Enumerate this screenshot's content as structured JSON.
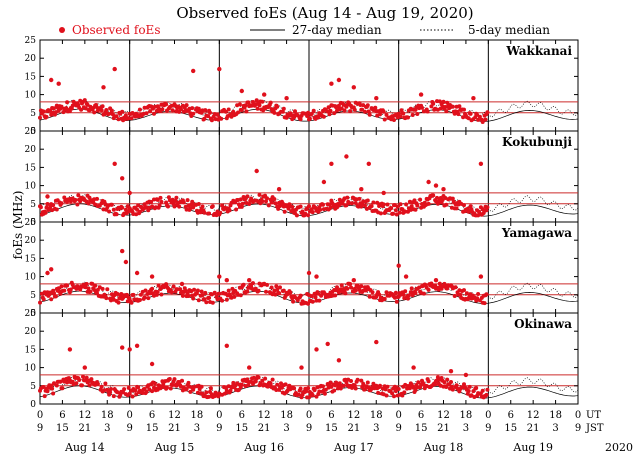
{
  "chart_data": {
    "type": "scatter",
    "title": "Observed foEs (Aug 14 - Aug 19, 2020)",
    "legend": {
      "observed": "Observed foEs",
      "median27": "27-day median",
      "median5": "5-day median"
    },
    "ylabel": "foEs (MHz)",
    "ylim": [
      0,
      25
    ],
    "yticks": [
      0,
      5,
      10,
      15,
      20,
      25
    ],
    "reference_lines_mhz": [
      5,
      8
    ],
    "colors": {
      "observed": "#e0101c",
      "reference": "#cc2a2a",
      "median": "#000000"
    },
    "x_hours": [
      0,
      144
    ],
    "day_boundaries_hours": [
      24,
      48,
      72,
      96,
      120
    ],
    "ut_ticks": [
      "0",
      "6",
      "12",
      "18",
      "0",
      "6",
      "12",
      "18",
      "0",
      "6",
      "12",
      "18",
      "0",
      "6",
      "12",
      "18",
      "0",
      "6",
      "12",
      "18",
      "0",
      "6",
      "12",
      "18",
      "0"
    ],
    "jst_ticks": [
      "9",
      "15",
      "21",
      "3",
      "9",
      "15",
      "21",
      "3",
      "9",
      "15",
      "21",
      "3",
      "9",
      "15",
      "21",
      "3",
      "9",
      "15",
      "21",
      "3",
      "9",
      "15",
      "21",
      "3",
      "9"
    ],
    "axis_label_ut": "UT",
    "axis_label_jst": "JST",
    "dates": [
      "Aug 14",
      "Aug 15",
      "Aug 16",
      "Aug 17",
      "Aug 18",
      "Aug 19"
    ],
    "year": "2020",
    "stations": [
      {
        "name": "Wakkanai",
        "observed_until_hour": 120,
        "base": 5.5,
        "spikes": [
          [
            3,
            14
          ],
          [
            5,
            13
          ],
          [
            17,
            12
          ],
          [
            20,
            17
          ],
          [
            41,
            16.5
          ],
          [
            48,
            17
          ],
          [
            54,
            11
          ],
          [
            60,
            10
          ],
          [
            66,
            9
          ],
          [
            78,
            13
          ],
          [
            80,
            14
          ],
          [
            84,
            12
          ],
          [
            90,
            9
          ],
          [
            102,
            10
          ],
          [
            108,
            8
          ],
          [
            116,
            9
          ]
        ]
      },
      {
        "name": "Kokubunji",
        "observed_until_hour": 120,
        "base": 4.5,
        "spikes": [
          [
            2,
            7
          ],
          [
            20,
            16
          ],
          [
            22,
            12
          ],
          [
            24,
            8
          ],
          [
            58,
            14
          ],
          [
            60,
            7
          ],
          [
            64,
            9
          ],
          [
            76,
            11
          ],
          [
            78,
            16
          ],
          [
            82,
            18
          ],
          [
            86,
            9
          ],
          [
            88,
            16
          ],
          [
            92,
            8
          ],
          [
            104,
            11
          ],
          [
            106,
            10
          ],
          [
            108,
            9
          ],
          [
            118,
            16
          ]
        ]
      },
      {
        "name": "Yamagawa",
        "observed_until_hour": 120,
        "base": 5.5,
        "spikes": [
          [
            2,
            11
          ],
          [
            3,
            12
          ],
          [
            22,
            17
          ],
          [
            23,
            14
          ],
          [
            26,
            11
          ],
          [
            30,
            10
          ],
          [
            38,
            8
          ],
          [
            48,
            10
          ],
          [
            50,
            9
          ],
          [
            56,
            9
          ],
          [
            60,
            8
          ],
          [
            72,
            11
          ],
          [
            74,
            10
          ],
          [
            84,
            9
          ],
          [
            96,
            13
          ],
          [
            98,
            10
          ],
          [
            106,
            9
          ],
          [
            118,
            10
          ]
        ]
      },
      {
        "name": "Okinawa",
        "observed_until_hour": 120,
        "base": 4.5,
        "spikes": [
          [
            8,
            15
          ],
          [
            12,
            10
          ],
          [
            22,
            15.5
          ],
          [
            24,
            15
          ],
          [
            26,
            16
          ],
          [
            30,
            11
          ],
          [
            50,
            16
          ],
          [
            56,
            10
          ],
          [
            70,
            10
          ],
          [
            74,
            15
          ],
          [
            77,
            16.5
          ],
          [
            80,
            12
          ],
          [
            90,
            17
          ],
          [
            100,
            10
          ],
          [
            110,
            9
          ],
          [
            114,
            8
          ]
        ]
      }
    ]
  }
}
